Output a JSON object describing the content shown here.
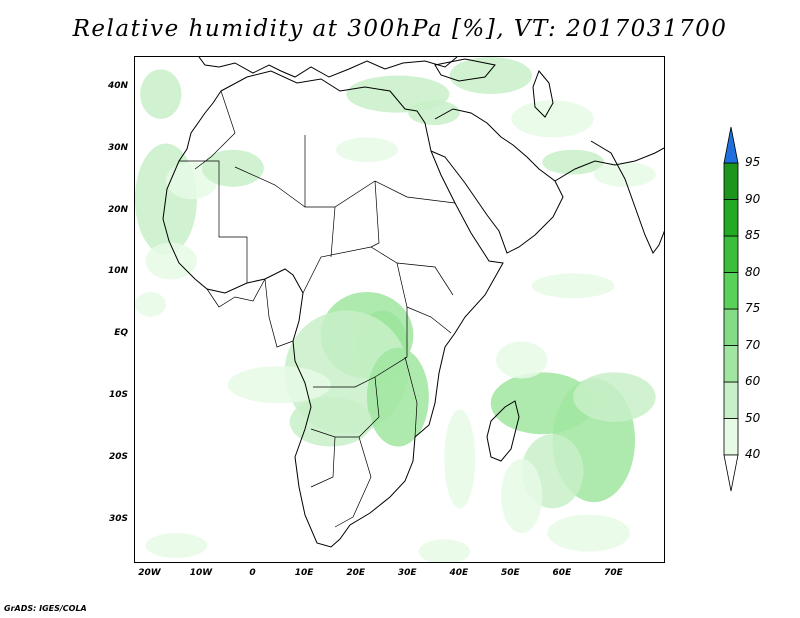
{
  "title": "Relative humidity at 300hPa [%], VT: 2017031700",
  "credit": "GrADS: IGES/COLA",
  "map": {
    "lon_range": [
      -23,
      80
    ],
    "lat_range": [
      -37,
      45
    ],
    "lat_ticks": [
      {
        "value": 40,
        "label": "40N"
      },
      {
        "value": 30,
        "label": "30N"
      },
      {
        "value": 20,
        "label": "20N"
      },
      {
        "value": 10,
        "label": "10N"
      },
      {
        "value": 0,
        "label": "EQ"
      },
      {
        "value": -10,
        "label": "10S"
      },
      {
        "value": -20,
        "label": "20S"
      },
      {
        "value": -30,
        "label": "30S"
      }
    ],
    "lon_ticks": [
      {
        "value": -20,
        "label": "20W"
      },
      {
        "value": -10,
        "label": "10W"
      },
      {
        "value": 0,
        "label": "0"
      },
      {
        "value": 10,
        "label": "10E"
      },
      {
        "value": 20,
        "label": "20E"
      },
      {
        "value": 30,
        "label": "30E"
      },
      {
        "value": 40,
        "label": "40E"
      },
      {
        "value": 50,
        "label": "50E"
      },
      {
        "value": 60,
        "label": "60E"
      },
      {
        "value": 70,
        "label": "70E"
      }
    ]
  },
  "colorbar": {
    "levels": [
      {
        "value": "40",
        "color": "#ffffff"
      },
      {
        "value": "50",
        "color": "#e6fae6"
      },
      {
        "value": "60",
        "color": "#c8f0c8"
      },
      {
        "value": "70",
        "color": "#a0e6a0"
      },
      {
        "value": "75",
        "color": "#84dc84"
      },
      {
        "value": "80",
        "color": "#5ad25a"
      },
      {
        "value": "85",
        "color": "#3cbe3c"
      },
      {
        "value": "90",
        "color": "#23aa23"
      },
      {
        "value": "95",
        "color": "#1e961e"
      }
    ],
    "under_color": "#ffffff",
    "over_color": "#1f6fdc"
  },
  "humidity_regions": [
    {
      "lon": 25,
      "lat": -2,
      "rx": 5,
      "ry": 6,
      "level": 75
    },
    {
      "lon": 22,
      "lat": 0,
      "rx": 9,
      "ry": 7,
      "level": 70
    },
    {
      "lon": 18,
      "lat": -6,
      "rx": 12,
      "ry": 10,
      "level": 60
    },
    {
      "lon": 28,
      "lat": -10,
      "rx": 6,
      "ry": 8,
      "level": 70
    },
    {
      "lon": 15,
      "lat": -14,
      "rx": 8,
      "ry": 4,
      "level": 60
    },
    {
      "lon": 5,
      "lat": -8,
      "rx": 10,
      "ry": 3,
      "level": 50
    },
    {
      "lon": 56,
      "lat": -11,
      "rx": 10,
      "ry": 5,
      "level": 70
    },
    {
      "lon": 66,
      "lat": -17,
      "rx": 8,
      "ry": 10,
      "level": 70
    },
    {
      "lon": 58,
      "lat": -22,
      "rx": 6,
      "ry": 6,
      "level": 60
    },
    {
      "lon": 70,
      "lat": -10,
      "rx": 8,
      "ry": 4,
      "level": 60
    },
    {
      "lon": 52,
      "lat": -4,
      "rx": 5,
      "ry": 3,
      "level": 50
    },
    {
      "lon": 52,
      "lat": -26,
      "rx": 4,
      "ry": 6,
      "level": 50
    },
    {
      "lon": -17,
      "lat": 22,
      "rx": 6,
      "ry": 9,
      "level": 60
    },
    {
      "lon": -12,
      "lat": 25,
      "rx": 5,
      "ry": 3,
      "level": 50
    },
    {
      "lon": -4,
      "lat": 27,
      "rx": 6,
      "ry": 3,
      "level": 60
    },
    {
      "lon": -16,
      "lat": 12,
      "rx": 5,
      "ry": 3,
      "level": 50
    },
    {
      "lon": -18,
      "lat": 39,
      "rx": 4,
      "ry": 4,
      "level": 60
    },
    {
      "lon": -20,
      "lat": 5,
      "rx": 3,
      "ry": 2,
      "level": 50
    },
    {
      "lon": 28,
      "lat": 39,
      "rx": 10,
      "ry": 3,
      "level": 60
    },
    {
      "lon": 35,
      "lat": 36,
      "rx": 5,
      "ry": 2,
      "level": 60
    },
    {
      "lon": 46,
      "lat": 42,
      "rx": 8,
      "ry": 3,
      "level": 60
    },
    {
      "lon": 58,
      "lat": 35,
      "rx": 8,
      "ry": 3,
      "level": 50
    },
    {
      "lon": 62,
      "lat": 28,
      "rx": 6,
      "ry": 2,
      "level": 60
    },
    {
      "lon": 72,
      "lat": 26,
      "rx": 6,
      "ry": 2,
      "level": 50
    },
    {
      "lon": 22,
      "lat": 30,
      "rx": 6,
      "ry": 2,
      "level": 50
    },
    {
      "lon": 62,
      "lat": 8,
      "rx": 8,
      "ry": 2,
      "level": 50
    },
    {
      "lon": 40,
      "lat": -20,
      "rx": 3,
      "ry": 8,
      "level": 50
    },
    {
      "lon": 37,
      "lat": -35,
      "rx": 5,
      "ry": 2,
      "level": 50
    },
    {
      "lon": 65,
      "lat": -32,
      "rx": 8,
      "ry": 3,
      "level": 50
    },
    {
      "lon": -15,
      "lat": -34,
      "rx": 6,
      "ry": 2,
      "level": 50
    }
  ]
}
